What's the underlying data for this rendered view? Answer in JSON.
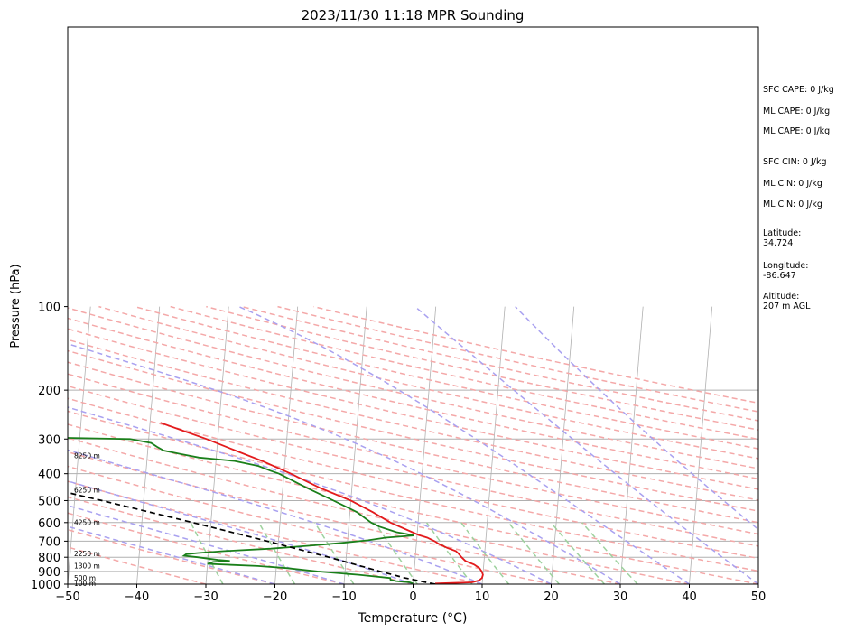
{
  "chart_data": {
    "type": "line",
    "title": "2023/11/30 11:18 MPR Sounding",
    "xlabel": "Temperature (°C)",
    "ylabel": "Pressure (hPa)",
    "xlim": [
      -50,
      50
    ],
    "ylim": [
      1000,
      100
    ],
    "y_scale": "log",
    "skew": "skew-T",
    "x_ticks": [
      "−50",
      "−40",
      "−30",
      "−20",
      "−10",
      "0",
      "10",
      "20",
      "30",
      "40",
      "50"
    ],
    "y_ticks": [
      "100",
      "200",
      "300",
      "400",
      "500",
      "600",
      "700",
      "800",
      "900",
      "1000"
    ],
    "series": [
      {
        "role": "temperature",
        "color": "#e31a1c",
        "points": [
          {
            "p": 995,
            "t": 3.2
          },
          {
            "p": 985,
            "t": 8.5
          },
          {
            "p": 970,
            "t": 9.5
          },
          {
            "p": 950,
            "t": 9.9
          },
          {
            "p": 925,
            "t": 10.0
          },
          {
            "p": 900,
            "t": 9.8
          },
          {
            "p": 875,
            "t": 9.4
          },
          {
            "p": 850,
            "t": 8.6
          },
          {
            "p": 825,
            "t": 7.3
          },
          {
            "p": 800,
            "t": 6.7
          },
          {
            "p": 775,
            "t": 6.2
          },
          {
            "p": 760,
            "t": 5.8
          },
          {
            "p": 740,
            "t": 4.5
          },
          {
            "p": 715,
            "t": 3.2
          },
          {
            "p": 700,
            "t": 2.6
          },
          {
            "p": 680,
            "t": 1.5
          },
          {
            "p": 665,
            "t": 0.2
          },
          {
            "p": 600,
            "t": -4.0
          },
          {
            "p": 550,
            "t": -6.7
          },
          {
            "p": 500,
            "t": -10.0
          },
          {
            "p": 450,
            "t": -14.6
          },
          {
            "p": 400,
            "t": -19.0
          },
          {
            "p": 360,
            "t": -23.3
          },
          {
            "p": 330,
            "t": -27.3
          },
          {
            "p": 300,
            "t": -31.6
          },
          {
            "p": 280,
            "t": -35.1
          },
          {
            "p": 262,
            "t": -38.5
          }
        ]
      },
      {
        "role": "dewpoint",
        "color": "#1a7f1a",
        "points": [
          {
            "p": 995,
            "t": 0.0
          },
          {
            "p": 985,
            "t": -0.5
          },
          {
            "p": 975,
            "t": -2.5
          },
          {
            "p": 965,
            "t": -3.3
          },
          {
            "p": 950,
            "t": -3.4
          },
          {
            "p": 925,
            "t": -8.0
          },
          {
            "p": 900,
            "t": -14.0
          },
          {
            "p": 875,
            "t": -18.5
          },
          {
            "p": 860,
            "t": -22.7
          },
          {
            "p": 845,
            "t": -30.0
          },
          {
            "p": 832,
            "t": -29.2
          },
          {
            "p": 825,
            "t": -26.8
          },
          {
            "p": 818,
            "t": -28.5
          },
          {
            "p": 800,
            "t": -31.5
          },
          {
            "p": 790,
            "t": -33.5
          },
          {
            "p": 780,
            "t": -33.2
          },
          {
            "p": 772,
            "t": -31.5
          },
          {
            "p": 760,
            "t": -27.7
          },
          {
            "p": 745,
            "t": -21.0
          },
          {
            "p": 725,
            "t": -15.0
          },
          {
            "p": 710,
            "t": -10.8
          },
          {
            "p": 695,
            "t": -7.0
          },
          {
            "p": 680,
            "t": -4.5
          },
          {
            "p": 668,
            "t": -0.5
          },
          {
            "p": 660,
            "t": -1.5
          },
          {
            "p": 650,
            "t": -3.0
          },
          {
            "p": 620,
            "t": -5.6
          },
          {
            "p": 600,
            "t": -6.8
          },
          {
            "p": 550,
            "t": -9.0
          },
          {
            "p": 500,
            "t": -12.5
          },
          {
            "p": 450,
            "t": -16.5
          },
          {
            "p": 400,
            "t": -20.7
          },
          {
            "p": 390,
            "t": -22.0
          },
          {
            "p": 375,
            "t": -23.8
          },
          {
            "p": 360,
            "t": -27.3
          },
          {
            "p": 350,
            "t": -32.5
          },
          {
            "p": 340,
            "t": -35.1
          },
          {
            "p": 330,
            "t": -37.7
          },
          {
            "p": 320,
            "t": -38.7
          },
          {
            "p": 310,
            "t": -39.6
          },
          {
            "p": 300,
            "t": -42.7
          },
          {
            "p": 295,
            "t": -59.0
          },
          {
            "p": 290,
            "t": -66.0
          },
          {
            "p": 285,
            "t": -78.0
          }
        ]
      },
      {
        "role": "parcel",
        "color": "#000000",
        "points": [
          {
            "p": 1000,
            "t": 3.2
          },
          {
            "p": 950,
            "t": -1.2
          },
          {
            "p": 900,
            "t": -4.9
          },
          {
            "p": 800,
            "t": -12.5
          },
          {
            "p": 700,
            "t": -21.6
          },
          {
            "p": 600,
            "t": -32.6
          },
          {
            "p": 500,
            "t": -46.0
          },
          {
            "p": 400,
            "t": -63.0
          },
          {
            "p": 300,
            "t": -86.0
          },
          {
            "p": 270,
            "t": -94.5
          }
        ]
      }
    ],
    "height_labels": [
      {
        "p": 1000,
        "text": "100 m"
      },
      {
        "p": 955,
        "text": "500 m"
      },
      {
        "p": 864,
        "text": "1300 m"
      },
      {
        "p": 782,
        "text": "2250 m"
      },
      {
        "p": 603,
        "text": "4250 m"
      },
      {
        "p": 460,
        "text": "6250 m"
      },
      {
        "p": 346,
        "text": "8250 m"
      }
    ],
    "annotations": [
      "SFC CAPE: 0 J/kg",
      "ML CAPE: 0 J/kg",
      "ML CAPE: 0 J/kg",
      "SFC CIN: 0 J/kg",
      "ML CIN: 0 J/kg",
      "ML CIN: 0 J/kg",
      "Latitude:\n34.724",
      "Longitude:\n-86.647",
      "Altitude:\n207 m AGL"
    ],
    "grid": true,
    "background_lines": [
      "isotherms",
      "dry adiabats",
      "moist adiabats",
      "mixing ratio lines"
    ],
    "colors": {
      "isotherm": "#b0b0b0",
      "isobar": "#b0b0b0",
      "dry_adiabat": "#f4a8a8",
      "moist_adiabat": "#a9a1f0",
      "mixing_ratio": "#9ed29e"
    }
  }
}
